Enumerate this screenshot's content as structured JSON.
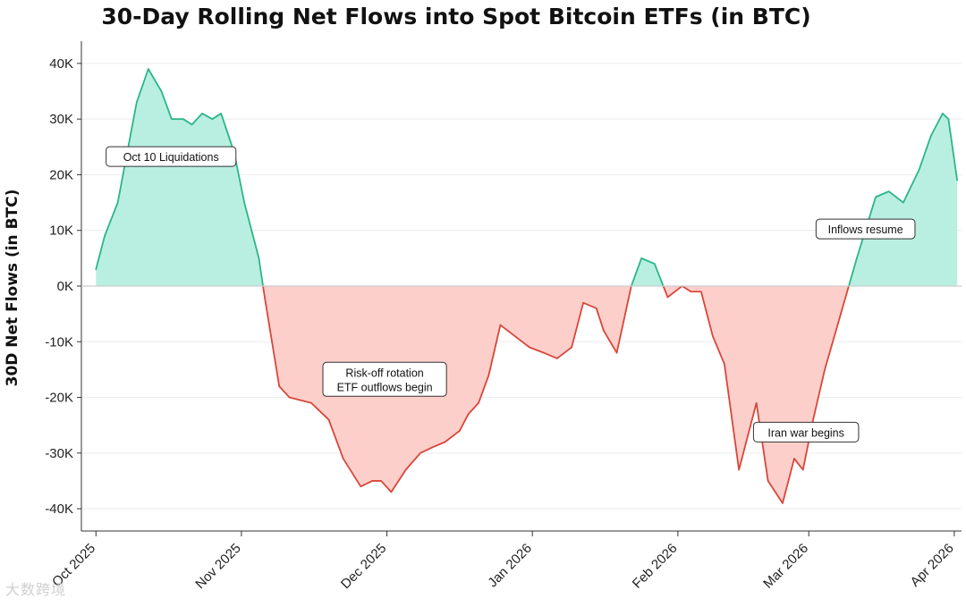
{
  "chart_data": {
    "type": "area",
    "title": "30-Day Rolling Net Flows into Spot Bitcoin ETFs (in BTC)",
    "xlabel": "",
    "ylabel": "30D Net Flows (in BTC)",
    "ylim": [
      -44000,
      44000
    ],
    "yticks": [
      40000,
      30000,
      20000,
      10000,
      0,
      -10000,
      -20000,
      -30000,
      -40000
    ],
    "ytick_labels": [
      "40K",
      "30K",
      "20K",
      "10K",
      "0K",
      "-10K",
      "-20K",
      "-30K",
      "-40K"
    ],
    "xlim": [
      -1,
      59.5
    ],
    "xticks": [
      0,
      10,
      20,
      30,
      40,
      49,
      59
    ],
    "xtick_labels": [
      "Oct 2025",
      "Nov 2025",
      "Dec 2025",
      "Jan 2026",
      "Feb 2026",
      "Mar 2026",
      "Apr 2026"
    ],
    "colors": {
      "positive_fill": "#b9efe0",
      "positive_line": "#2bb58a",
      "negative_fill": "#fdcfcb",
      "negative_line": "#d9463a"
    },
    "x": [
      0,
      0.6,
      1.5,
      2.8,
      3.6,
      4.5,
      5.2,
      6,
      6.6,
      7.3,
      8,
      8.6,
      9.5,
      10.2,
      11.2,
      11.6,
      12.1,
      12.6,
      13.3,
      14.8,
      16,
      17,
      18.2,
      19,
      19.6,
      20.3,
      21.3,
      22.3,
      23.1,
      24,
      25,
      25.6,
      26.3,
      27,
      27.8,
      28.8,
      29.8,
      30.8,
      31.7,
      32.7,
      33.5,
      34.4,
      34.9,
      35.8,
      36.8,
      37.5,
      38.4,
      39.3,
      40.3,
      40.9,
      41.6,
      42.4,
      43.2,
      44.2,
      45.4,
      46.2,
      47.2,
      48,
      48.6,
      49.3,
      50.1,
      51.2,
      52.3,
      53.6,
      54.5,
      55.5,
      56.6,
      57.4,
      58.2,
      58.6,
      59.2
    ],
    "values": [
      3000,
      9000,
      15000,
      33000,
      39000,
      35000,
      30000,
      30000,
      29000,
      31000,
      30000,
      31000,
      24000,
      15000,
      5000,
      -2000,
      -10000,
      -18000,
      -20000,
      -21000,
      -24000,
      -31000,
      -36000,
      -35000,
      -35000,
      -37000,
      -33000,
      -30000,
      -29000,
      -28000,
      -26000,
      -23000,
      -21000,
      -16000,
      -7000,
      -9000,
      -11000,
      -12000,
      -13000,
      -11000,
      -3000,
      -4000,
      -8000,
      -12000,
      0,
      5000,
      4000,
      -2000,
      0,
      -1000,
      -1000,
      -9000,
      -14000,
      -33000,
      -21000,
      -35000,
      -39000,
      -31000,
      -33000,
      -24000,
      -15000,
      -5000,
      5000,
      16000,
      17000,
      15000,
      21000,
      27000,
      31000,
      30000,
      19000
    ],
    "annotations": [
      {
        "text": "Oct 10 Liquidations",
        "x": 0.7,
        "y": 21500
      },
      {
        "text": "Risk-off rotation",
        "text2": "ETF outflows begin",
        "x": 15.6,
        "y": -19800
      },
      {
        "text": "Iran war begins",
        "x": 45.2,
        "y": -28000
      },
      {
        "text": "Inflows resume",
        "x": 49.5,
        "y": 8500
      }
    ]
  },
  "watermark": "大数跨境"
}
